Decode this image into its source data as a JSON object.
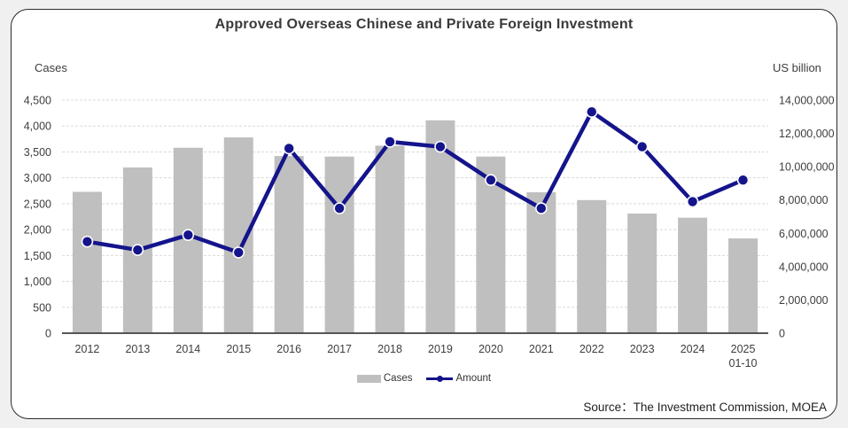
{
  "title": "Approved Overseas Chinese and Private Foreign Investment",
  "source_note": "Source：The Investment Commission, MOEA",
  "colors": {
    "bar": "#bfbfbf",
    "line": "#14148c",
    "marker_outline": "#fafafa",
    "gridline": "#d9d9d9",
    "axis_line": "#404040",
    "tick_text": "#3d3d3d",
    "card_bg": "#ffffff",
    "card_border": "#2b2b2b",
    "page_bg": "#f0f0f0"
  },
  "legend": {
    "cases_label": "Cases",
    "amount_label": "Amount"
  },
  "chart_data": {
    "type": "bar",
    "subtype": "combo-bar-line",
    "title": "Approved Overseas Chinese and Private Foreign Investment",
    "categories": [
      "2012",
      "2013",
      "2014",
      "2015",
      "2016",
      "2017",
      "2018",
      "2019",
      "2020",
      "2021",
      "2022",
      "2023",
      "2024",
      "2025"
    ],
    "category_sublabels": [
      "",
      "",
      "",
      "",
      "",
      "",
      "",
      "",
      "",
      "",
      "",
      "",
      "",
      "01-10"
    ],
    "series": [
      {
        "name": "Cases",
        "type": "bar",
        "axis": "left",
        "values": [
          2730,
          3200,
          3580,
          3780,
          3420,
          3410,
          3620,
          4110,
          3410,
          2720,
          2570,
          2310,
          2230,
          1830
        ]
      },
      {
        "name": "Amount",
        "type": "line",
        "axis": "right",
        "values": [
          5500000,
          5000000,
          5900000,
          4850000,
          11100000,
          7500000,
          11500000,
          11200000,
          9200000,
          7500000,
          13300000,
          11200000,
          7900000,
          9200000
        ]
      }
    ],
    "left_axis": {
      "label": "Cases",
      "min": 0,
      "max": 4500,
      "step": 500
    },
    "right_axis": {
      "label": "US billion",
      "min": 0,
      "max": 14000000,
      "step": 2000000
    },
    "grid": "horizontal-dashed",
    "legend_position": "bottom"
  }
}
